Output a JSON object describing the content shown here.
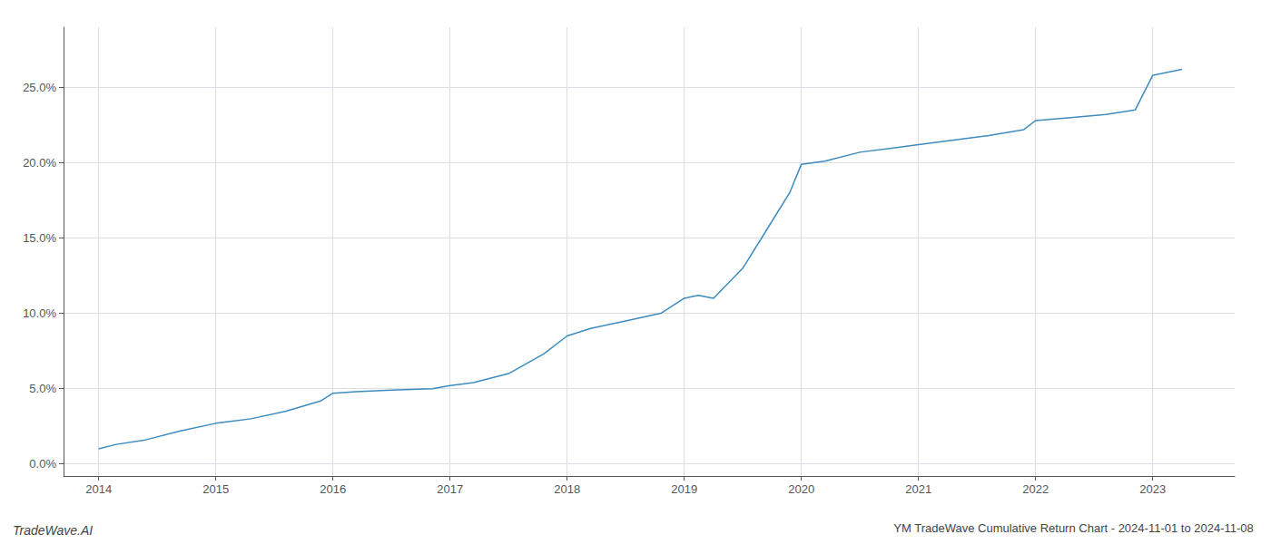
{
  "chart_data": {
    "type": "line",
    "title": "YM TradeWave Cumulative Return Chart - 2024-11-01 to 2024-11-08",
    "annotations": [
      "TradeWave.AI"
    ],
    "x": [
      2014.0,
      2014.15,
      2014.4,
      2014.7,
      2015.0,
      2015.3,
      2015.6,
      2015.9,
      2016.0,
      2016.2,
      2016.5,
      2016.85,
      2017.0,
      2017.2,
      2017.5,
      2017.8,
      2018.0,
      2018.2,
      2018.5,
      2018.8,
      2019.0,
      2019.12,
      2019.25,
      2019.5,
      2019.7,
      2019.9,
      2020.0,
      2020.2,
      2020.5,
      2020.8,
      2021.0,
      2021.3,
      2021.6,
      2021.9,
      2022.0,
      2022.3,
      2022.6,
      2022.85,
      2023.0,
      2023.25
    ],
    "values": [
      0.01,
      0.013,
      0.016,
      0.022,
      0.027,
      0.03,
      0.035,
      0.042,
      0.047,
      0.048,
      0.049,
      0.05,
      0.052,
      0.054,
      0.06,
      0.073,
      0.085,
      0.09,
      0.095,
      0.1,
      0.11,
      0.112,
      0.11,
      0.13,
      0.155,
      0.18,
      0.199,
      0.201,
      0.207,
      0.21,
      0.212,
      0.215,
      0.218,
      0.222,
      0.228,
      0.23,
      0.232,
      0.235,
      0.258,
      0.262
    ],
    "color": "#3d8bbf",
    "xlim": [
      2013.7,
      2023.7
    ],
    "xticks": [
      2014,
      2015,
      2016,
      2017,
      2018,
      2019,
      2020,
      2021,
      2022,
      2023
    ],
    "ylim": [
      -0.008,
      0.29
    ],
    "yticks": [
      {
        "value": 0.0,
        "label": "0.0%"
      },
      {
        "value": 0.05,
        "label": "5.0%"
      },
      {
        "value": 0.1,
        "label": "10.0%"
      },
      {
        "value": 0.15,
        "label": "15.0%"
      },
      {
        "value": 0.2,
        "label": "20.0%"
      },
      {
        "value": 0.25,
        "label": "25.0%"
      }
    ],
    "grid": true
  }
}
